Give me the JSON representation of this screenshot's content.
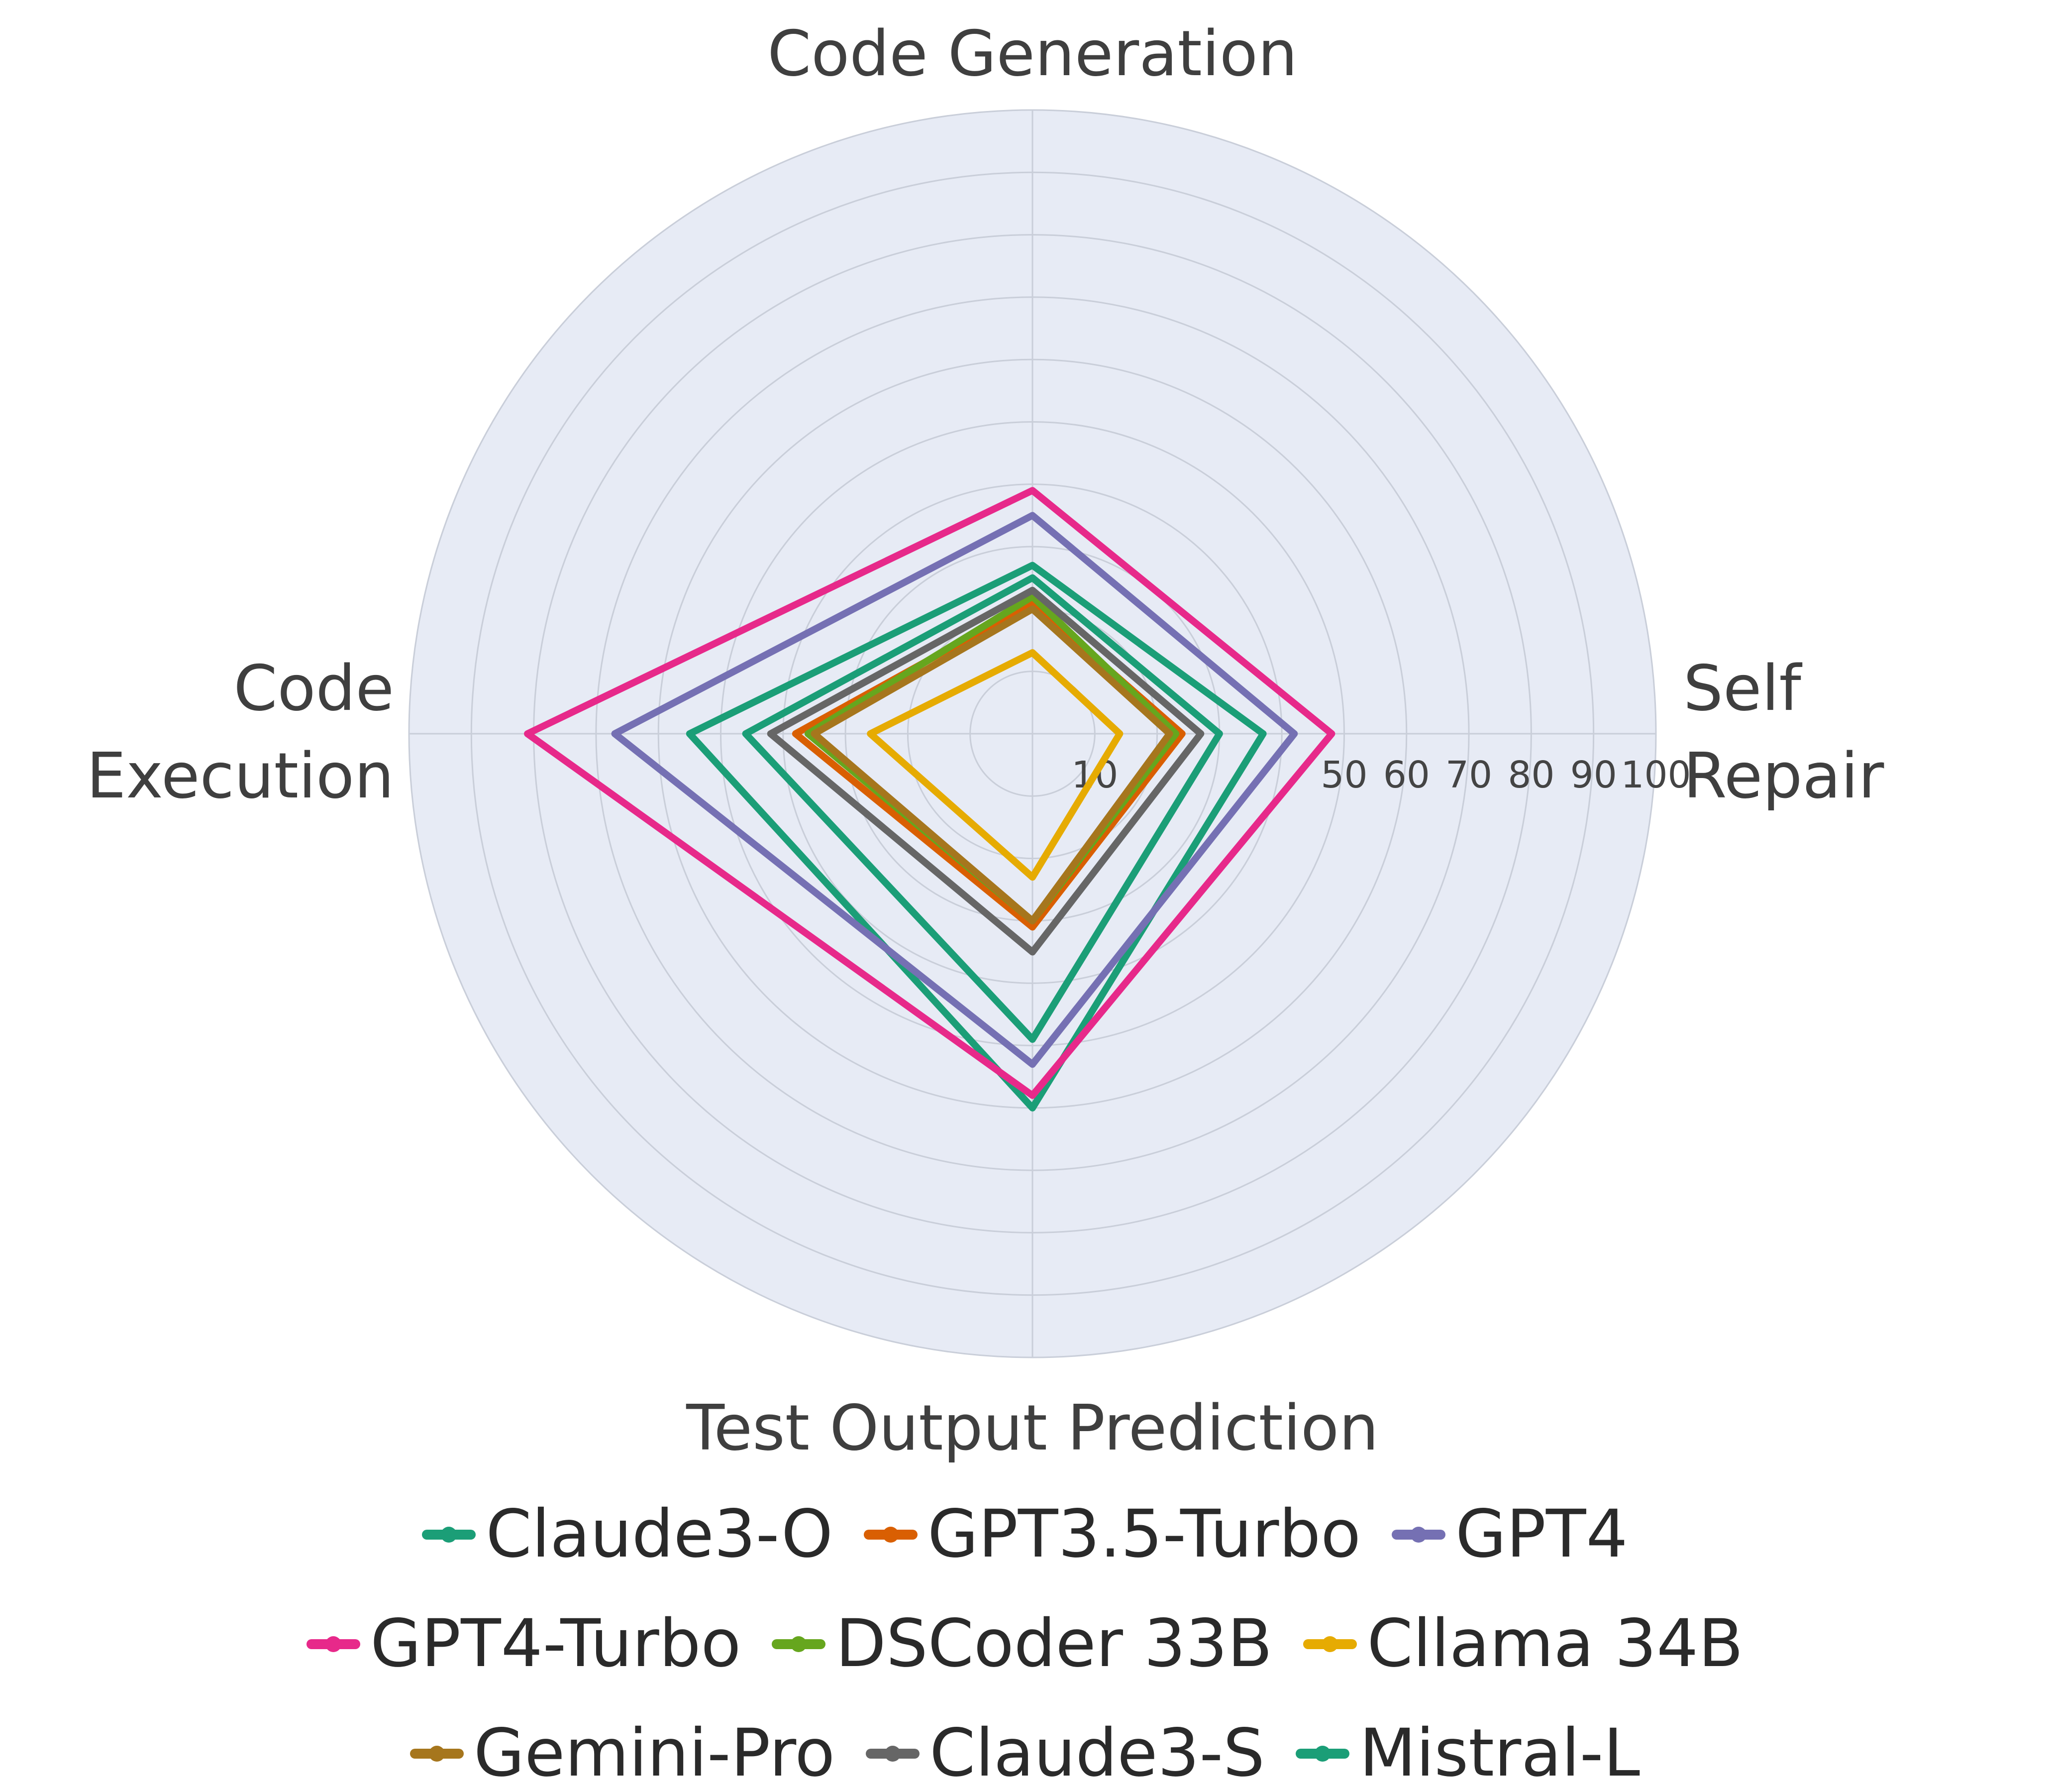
{
  "chart_data": {
    "type": "radar",
    "categories": [
      "Code Generation",
      "Self Repair",
      "Test Output Prediction",
      "Code Execution"
    ],
    "axis_titles": [
      {
        "lines": [
          "Code Generation"
        ]
      },
      {
        "lines": [
          "Self",
          "Repair"
        ]
      },
      {
        "lines": [
          "Test Output Prediction"
        ]
      },
      {
        "lines": [
          "Code",
          "Execution"
        ]
      }
    ],
    "radial_axis": {
      "min": 0,
      "max": 100,
      "grid_step": 10,
      "visible_ticks": [
        10,
        50,
        60,
        70,
        80,
        90,
        100
      ]
    },
    "series": [
      {
        "name": "Claude3-O",
        "color": "#1b9e77",
        "values": [
          27,
          37,
          60,
          55
        ]
      },
      {
        "name": "GPT3.5-Turbo",
        "color": "#d95f02",
        "values": [
          21,
          24,
          31,
          38
        ]
      },
      {
        "name": "GPT4",
        "color": "#7570b3",
        "values": [
          35,
          42,
          53,
          67
        ]
      },
      {
        "name": "GPT4-Turbo",
        "color": "#e7298a",
        "values": [
          39,
          48,
          58,
          81
        ]
      },
      {
        "name": "DSCoder 33B",
        "color": "#66a61e",
        "values": [
          22,
          23,
          30,
          36
        ]
      },
      {
        "name": "Cllama 34B",
        "color": "#e6ab02",
        "values": [
          13,
          14,
          23,
          26
        ]
      },
      {
        "name": "Gemini-Pro",
        "color": "#a6761d",
        "values": [
          20,
          22,
          30,
          35
        ]
      },
      {
        "name": "Claude3-S",
        "color": "#666666",
        "values": [
          23,
          27,
          35,
          42
        ]
      },
      {
        "name": "Mistral-L",
        "color": "#1b9e77",
        "values": [
          25,
          30,
          49,
          46
        ]
      }
    ],
    "legend": {
      "position": "bottom",
      "rows": [
        [
          "Claude3-O",
          "GPT3.5-Turbo",
          "GPT4"
        ],
        [
          "GPT4-Turbo",
          "DSCoder 33B",
          "Cllama 34B"
        ],
        [
          "Gemini-Pro",
          "Claude3-S",
          "Mistral-L"
        ]
      ]
    },
    "styling": {
      "plot_bg": "#e7ebf5",
      "grid_color": "#c9ced9",
      "axis_text_color": "#444444",
      "title_color": "#3f3f3f"
    }
  }
}
